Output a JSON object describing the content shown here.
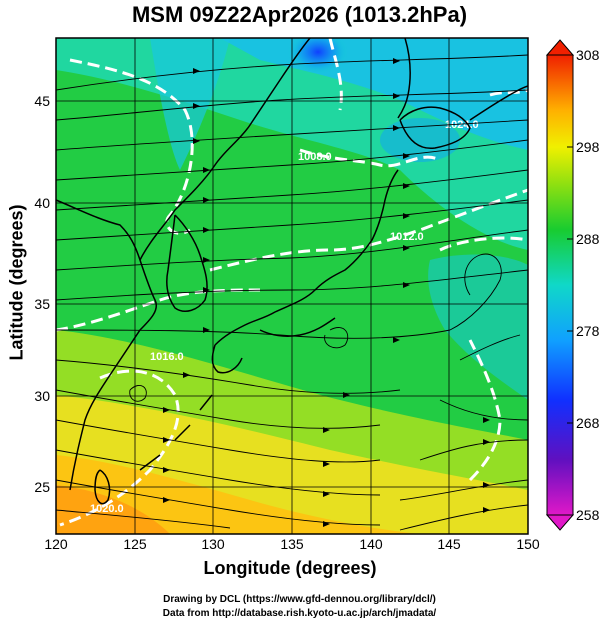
{
  "title": "MSM 09Z22Apr2026 (1013.2hPa)",
  "axes": {
    "xlabel": "Longitude (degrees)",
    "ylabel": "Latitude  (degrees)",
    "x_ticks": [
      "120",
      "125",
      "130",
      "135",
      "140",
      "145",
      "150"
    ],
    "y_ticks": [
      "25",
      "30",
      "35",
      "40",
      "45"
    ],
    "x_range": [
      120,
      150
    ],
    "y_range": [
      22.4,
      47.6
    ]
  },
  "colorbar": {
    "ticks": [
      "308",
      "298",
      "288",
      "278",
      "268",
      "258"
    ],
    "range": [
      258,
      308
    ]
  },
  "contour_labels": [
    "1008.0",
    "1012.0",
    "1016.0",
    "1020.0",
    "1024.0"
  ],
  "credits": {
    "line1": "Drawing by DCL (https://www.gfd-dennou.org/library/dcl/)",
    "line2": "Data from http://database.rish.kyoto-u.ac.jp/arch/jmadata/"
  },
  "colors": {
    "warm": "#ffd000",
    "mid": "#22cc22",
    "cool": "#22ccdd",
    "cold": "#1040ff",
    "land_outline": "#000000",
    "isobar": "#ffffff"
  }
}
